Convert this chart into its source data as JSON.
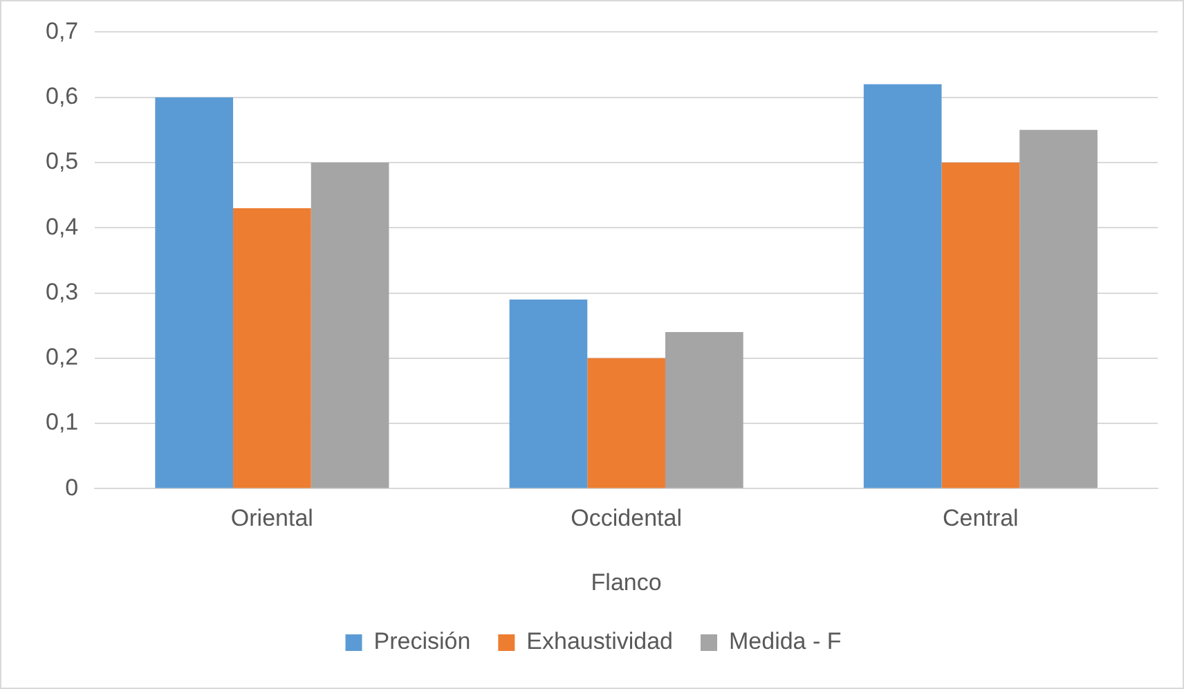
{
  "chart_data": {
    "type": "bar",
    "xlabel": "Flanco",
    "categories": [
      "Oriental",
      "Occidental",
      "Central"
    ],
    "series": [
      {
        "name": "Precisión",
        "color": "#5b9bd5",
        "values": [
          0.6,
          0.29,
          0.62
        ]
      },
      {
        "name": "Exhaustividad",
        "color": "#ed7d31",
        "values": [
          0.43,
          0.2,
          0.5
        ]
      },
      {
        "name": "Medida - F",
        "color": "#a5a5a5",
        "values": [
          0.5,
          0.24,
          0.55
        ]
      }
    ],
    "ylim": [
      0,
      0.7
    ],
    "yticks": [
      0,
      {
        "value": 0.1,
        "label": "0,1"
      },
      {
        "value": 0.2,
        "label": "0,2"
      },
      {
        "value": 0.3,
        "label": "0,3"
      },
      {
        "value": 0.4,
        "label": "0,4"
      },
      {
        "value": 0.5,
        "label": "0,5"
      },
      {
        "value": 0.6,
        "label": "0,6"
      },
      {
        "value": 0.7,
        "label": "0,7"
      }
    ],
    "grid": "y",
    "legend": "bottom"
  }
}
